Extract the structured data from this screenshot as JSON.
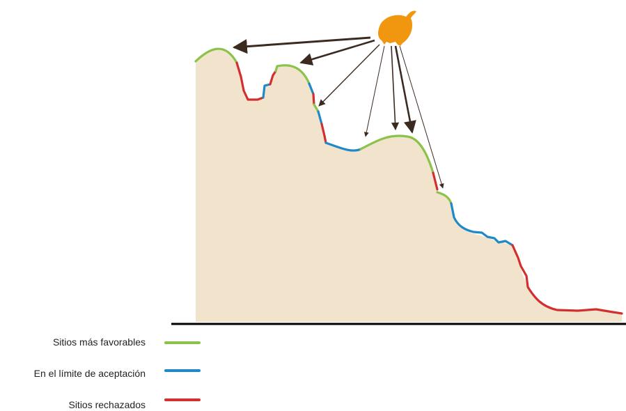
{
  "legend": {
    "items": [
      {
        "label": "Sitios más favorables",
        "color": "#8bc34a"
      },
      {
        "label": "En el límite de aceptación",
        "color": "#1e88c8"
      },
      {
        "label": "Sitios rechazados",
        "color": "#d32f2f"
      }
    ]
  },
  "colors": {
    "terrain": "#f2e4cc",
    "bird": "#f0960f",
    "arrow": "#3b2a20",
    "ground_line": "#000000"
  },
  "icons": [
    "bird-icon",
    "arrow-icon"
  ]
}
